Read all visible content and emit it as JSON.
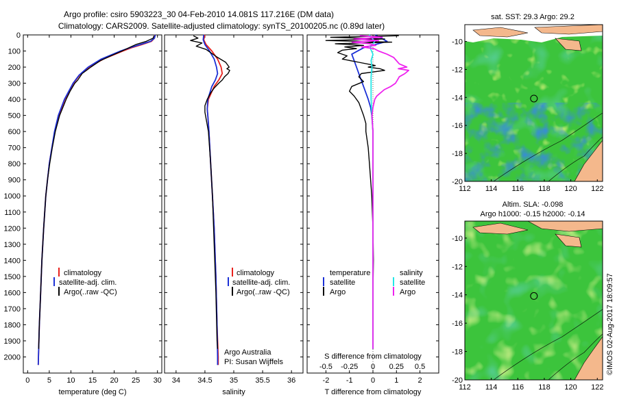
{
  "header": {
    "title_line1": "Argo profile: csiro 5903223_30 04-Feb-2010 14.081S 117.216E (DM data)",
    "title_line2": "Climatology: CARS2009. Satellite-adjusted climatology: synTS_20100205.nc (0.89d later)"
  },
  "colors": {
    "climatology": "#e8201c",
    "satellite": "#1a2fd6",
    "argo": "#000000",
    "salinity_sat": "#22e6e6",
    "salinity_argo": "#ee22ee",
    "ocean_green": "#3cc43c",
    "land": "#f4b88c"
  },
  "legend_labels": {
    "climatology": "climatology",
    "satellite_adj": "satellite-adj. clim.",
    "argo": "Argo(..raw -QC)"
  },
  "diff_legend": {
    "temperature": "temperature",
    "salinity": "salinity",
    "satellite": "satellite",
    "argo": "Argo"
  },
  "credits": {
    "line1": "Argo Australia",
    "line2": "PI: Susan Wijffels"
  },
  "watermark": "©IMOS 02-Aug-2017 18:09:57",
  "maps": {
    "top_title": "sat. SST: 29.3 Argo: 29.2",
    "bottom_title_line1": "Altim. SLA: -0.098",
    "bottom_title_line2": "Argo h1000: -0.15 h2000: -0.14",
    "x_ticks": [
      "112",
      "114",
      "116",
      "118",
      "120",
      "122"
    ],
    "y_ticks": [
      "-10",
      "-12",
      "-14",
      "-16",
      "-18",
      "-20"
    ],
    "argo_position": {
      "lon": 117.216,
      "lat": -14.081
    }
  },
  "chart_data": [
    {
      "id": "temperature",
      "type": "line",
      "xlabel": "temperature (deg C)",
      "ylabel": "",
      "xlim": [
        -1,
        31
      ],
      "ylim": [
        2100,
        0
      ],
      "x_ticks": [
        "0",
        "5",
        "10",
        "15",
        "20",
        "25",
        "30"
      ],
      "y_ticks": [
        "0",
        "100",
        "200",
        "300",
        "400",
        "500",
        "600",
        "700",
        "800",
        "900",
        "1000",
        "1100",
        "1200",
        "1300",
        "1400",
        "1500",
        "1600",
        "1700",
        "1800",
        "1900",
        "2000"
      ],
      "series": [
        {
          "name": "climatology",
          "color": "#e8201c",
          "depth": [
            0,
            20,
            40,
            60,
            80,
            100,
            150,
            200,
            250,
            300,
            400,
            500,
            600,
            700,
            800,
            900,
            1000,
            1200,
            1400,
            1600,
            1800,
            2000,
            2050
          ],
          "values": [
            29.4,
            29.3,
            28.6,
            26.4,
            24.0,
            22.0,
            17.5,
            14.2,
            12.0,
            10.6,
            8.6,
            7.2,
            6.3,
            5.6,
            5.0,
            4.6,
            4.2,
            3.7,
            3.3,
            3.0,
            2.7,
            2.5,
            2.45
          ]
        },
        {
          "name": "satellite-adj. clim.",
          "color": "#1a2fd6",
          "depth": [
            0,
            20,
            40,
            60,
            80,
            100,
            150,
            200,
            250,
            300,
            400,
            500,
            600,
            700,
            800,
            900,
            1000,
            1200,
            1400,
            1600,
            1800,
            2000,
            2050
          ],
          "values": [
            29.5,
            29.3,
            28.4,
            26.0,
            23.6,
            21.5,
            17.0,
            14.0,
            11.9,
            10.5,
            8.5,
            7.1,
            6.2,
            5.6,
            5.0,
            4.6,
            4.2,
            3.7,
            3.3,
            3.0,
            2.7,
            2.5,
            2.45
          ]
        },
        {
          "name": "Argo(..raw -QC)",
          "color": "#000000",
          "depth": [
            5,
            20,
            40,
            60,
            80,
            100,
            130,
            160,
            200,
            240,
            280,
            300,
            350,
            400,
            500,
            600,
            700,
            800,
            900,
            1000,
            1200,
            1400,
            1600,
            1800,
            1950
          ],
          "values": [
            29.2,
            29.0,
            27.4,
            25.0,
            23.4,
            21.8,
            19.2,
            16.8,
            14.6,
            12.6,
            11.6,
            10.9,
            9.8,
            8.9,
            7.4,
            6.4,
            5.7,
            5.1,
            4.6,
            4.2,
            3.7,
            3.3,
            3.0,
            2.7,
            2.55
          ]
        }
      ],
      "legend": [
        "climatology",
        "satellite-adj. clim.",
        "Argo(..raw -QC)"
      ]
    },
    {
      "id": "salinity",
      "type": "line",
      "xlabel": "salinity",
      "xlim": [
        33.8,
        36.2
      ],
      "ylim": [
        2100,
        0
      ],
      "x_ticks": [
        "34",
        "34.5",
        "35",
        "35.5",
        "36"
      ],
      "series": [
        {
          "name": "climatology",
          "color": "#e8201c",
          "depth": [
            0,
            30,
            60,
            100,
            150,
            200,
            240,
            280,
            320,
            400,
            460,
            500,
            600,
            800,
            1000,
            1200,
            1500,
            1800,
            2000,
            2050
          ],
          "values": [
            34.5,
            34.48,
            34.52,
            34.62,
            34.72,
            34.78,
            34.8,
            34.74,
            34.66,
            34.56,
            34.54,
            34.55,
            34.57,
            34.6,
            34.63,
            34.66,
            34.69,
            34.71,
            34.73,
            34.73
          ]
        },
        {
          "name": "satellite-adj. clim.",
          "color": "#1a2fd6",
          "depth": [
            0,
            30,
            60,
            100,
            150,
            200,
            240,
            280,
            320,
            400,
            460,
            500,
            600,
            800,
            1000,
            1200,
            1500,
            1800,
            2000,
            2050
          ],
          "values": [
            34.48,
            34.47,
            34.5,
            34.58,
            34.66,
            34.7,
            34.72,
            34.68,
            34.62,
            34.55,
            34.54,
            34.55,
            34.57,
            34.6,
            34.63,
            34.66,
            34.69,
            34.71,
            34.72,
            34.72
          ]
        },
        {
          "name": "Argo(..raw -QC)",
          "color": "#000000",
          "depth": [
            5,
            20,
            35,
            50,
            70,
            90,
            110,
            140,
            170,
            200,
            210,
            220,
            240,
            260,
            280,
            300,
            330,
            360,
            400,
            440,
            480,
            520,
            600,
            800,
            1000,
            1300,
            1600,
            1900,
            1950
          ],
          "values": [
            34.3,
            34.38,
            34.25,
            34.45,
            34.35,
            34.52,
            34.6,
            34.72,
            34.86,
            34.92,
            34.88,
            34.93,
            34.9,
            34.84,
            34.8,
            34.74,
            34.66,
            34.6,
            34.54,
            34.5,
            34.5,
            34.52,
            34.56,
            34.6,
            34.63,
            34.66,
            34.69,
            34.71,
            34.72
          ]
        }
      ],
      "legend": [
        "climatology",
        "satellite-adj. clim.",
        "Argo(..raw -QC)"
      ]
    },
    {
      "id": "difference",
      "type": "line",
      "xlabel": "T difference from climatology",
      "top_label": "S difference from climatology",
      "xlim": [
        -2.8,
        2.8
      ],
      "ylim": [
        2100,
        0
      ],
      "x_ticks": [
        "-2",
        "-1",
        "0",
        "1",
        "2"
      ],
      "s_ticks": [
        "-0.5",
        "-0.25",
        "0",
        "0.25",
        "0.5"
      ],
      "series": [
        {
          "name": "temperature satellite",
          "color": "#1a2fd6",
          "axis": "T",
          "depth": [
            0,
            40,
            80,
            120,
            160,
            200,
            260,
            320,
            400,
            450,
            500,
            600,
            800,
            1000,
            1400,
            1800,
            1950
          ],
          "values": [
            0.1,
            0.6,
            -0.4,
            -0.9,
            -0.8,
            -0.7,
            -0.55,
            -0.4,
            -0.2,
            -0.1,
            -0.05,
            0,
            0,
            0,
            0,
            0,
            0
          ]
        },
        {
          "name": "temperature Argo",
          "color": "#000000",
          "axis": "T",
          "depth": [
            5,
            15,
            25,
            35,
            45,
            55,
            65,
            75,
            85,
            95,
            110,
            130,
            150,
            170,
            190,
            200,
            210,
            220,
            240,
            260,
            290,
            320,
            350,
            380,
            420,
            460,
            500,
            550,
            600,
            700,
            800,
            900,
            1000,
            1200,
            1400,
            1600,
            1800,
            1950
          ],
          "values": [
            1.1,
            -1.8,
            0.5,
            -2.0,
            0.8,
            -1.6,
            -0.4,
            -1.2,
            -0.7,
            -1.3,
            -1.5,
            -1.1,
            -1.3,
            -0.6,
            0.1,
            -0.2,
            0.3,
            0.5,
            -0.5,
            -0.6,
            -0.4,
            -0.9,
            -1.0,
            -0.8,
            -0.6,
            -0.5,
            -0.4,
            -0.3,
            -0.3,
            -0.2,
            -0.15,
            -0.1,
            -0.05,
            0,
            0.02,
            0,
            0,
            0
          ]
        },
        {
          "name": "salinity satellite",
          "color": "#22e6e6",
          "axis": "S",
          "depth": [
            0,
            40,
            80,
            120,
            160,
            200,
            260,
            320,
            400,
            500,
            600,
            800,
            1000,
            1400,
            1800,
            1950
          ],
          "values": [
            -0.04,
            0.02,
            -0.03,
            0.0,
            -0.02,
            -0.01,
            -0.02,
            -0.02,
            -0.02,
            -0.01,
            0,
            0,
            0,
            0,
            0,
            0
          ]
        },
        {
          "name": "salinity Argo",
          "color": "#ee22ee",
          "axis": "S",
          "depth": [
            5,
            15,
            25,
            35,
            45,
            55,
            65,
            75,
            85,
            100,
            120,
            140,
            160,
            180,
            200,
            210,
            220,
            240,
            260,
            280,
            300,
            320,
            340,
            360,
            380,
            400,
            450,
            500,
            600,
            800,
            1000,
            1400,
            1800,
            1950
          ],
          "values": [
            -0.14,
            0.1,
            -0.2,
            0.06,
            -0.22,
            -0.04,
            0.03,
            -0.12,
            0.01,
            0.06,
            0.15,
            0.22,
            0.25,
            0.28,
            0.36,
            0.27,
            0.38,
            0.34,
            0.28,
            0.26,
            0.24,
            0.19,
            0.12,
            0.08,
            0.04,
            0.02,
            0.0,
            -0.01,
            0,
            0,
            0,
            0,
            0,
            0
          ]
        }
      ],
      "legend": [
        "temperature",
        "satellite",
        "Argo",
        "salinity",
        "satellite",
        "Argo"
      ]
    }
  ]
}
